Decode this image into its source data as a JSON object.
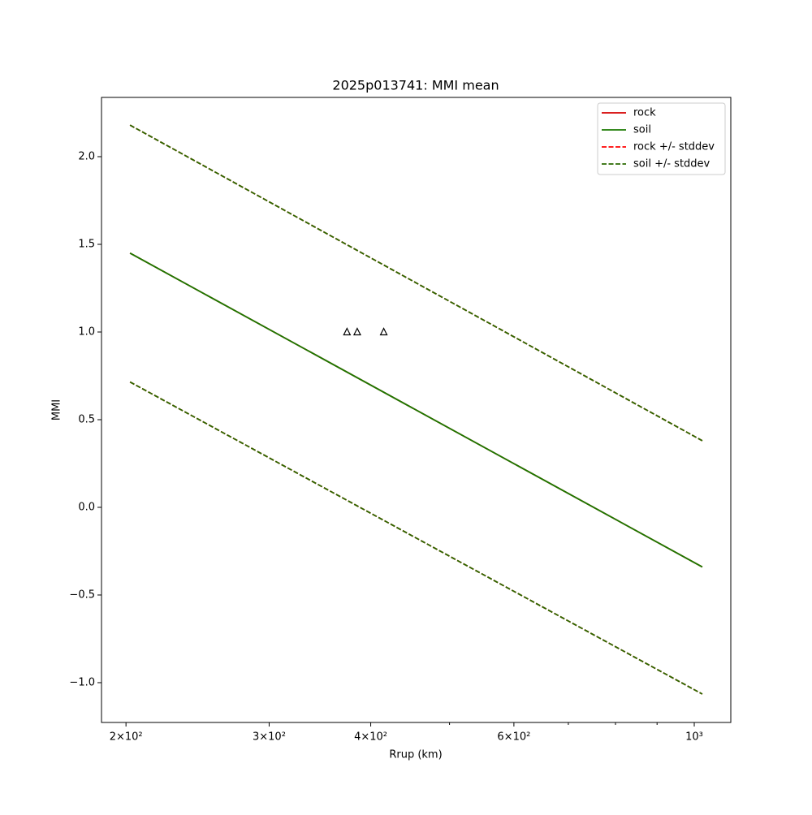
{
  "chart_data": {
    "type": "line",
    "title": "2025p013741: MMI mean",
    "x_label": "Rrup (km)",
    "y_label": "MMI",
    "xscale": "log",
    "xlim": [
      186.6,
      1109
    ],
    "ylim": [
      -1.227,
      2.338
    ],
    "xticks": [
      {
        "value": 200,
        "label": "2×10²"
      },
      {
        "value": 300,
        "label": "3×10²"
      },
      {
        "value": 400,
        "label": "4×10²"
      },
      {
        "value": 600,
        "label": "6×10²"
      },
      {
        "value": 1000,
        "label": "10³"
      }
    ],
    "xminorticks": [
      500,
      700,
      800,
      900
    ],
    "yticks": [
      {
        "value": -1.0,
        "label": "−1.0"
      },
      {
        "value": -0.5,
        "label": "−0.5"
      },
      {
        "value": 0.0,
        "label": "0.0"
      },
      {
        "value": 0.5,
        "label": "0.5"
      },
      {
        "value": 1.0,
        "label": "1.0"
      },
      {
        "value": 1.5,
        "label": "1.5"
      },
      {
        "value": 2.0,
        "label": "2.0"
      }
    ],
    "legend": "upper right",
    "series": [
      {
        "name": "rock",
        "color": "#d40000",
        "dash": false,
        "x": [
          202.3,
          1023
        ],
        "values": [
          1.45,
          -0.34
        ]
      },
      {
        "name": "soil",
        "color": "#1a7a00",
        "dash": false,
        "x": [
          202.3,
          1023
        ],
        "values": [
          1.45,
          -0.34
        ]
      },
      {
        "name": "rock +/- stddev",
        "color": "#ff0000",
        "dash": true,
        "x": [
          202.3,
          1023
        ],
        "upper": [
          2.18,
          0.38
        ],
        "lower": [
          0.715,
          -1.065
        ]
      },
      {
        "name": "soil +/- stddev",
        "color": "#2a6a00",
        "dash": true,
        "x": [
          202.3,
          1023
        ],
        "upper": [
          2.18,
          0.38
        ],
        "lower": [
          0.715,
          -1.065
        ]
      }
    ],
    "markers": {
      "color": "#000000",
      "x": [
        374,
        385,
        415
      ],
      "values": [
        1.0,
        1.0,
        1.0
      ]
    }
  }
}
